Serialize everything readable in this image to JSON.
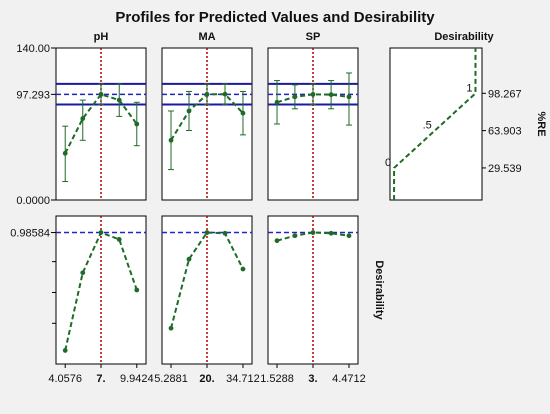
{
  "chart_data": {
    "type": "line",
    "title": "Profiles for Predicted Values and Desirability",
    "factors": [
      {
        "name": "pH",
        "tick_labels": [
          "4.0576",
          "7.",
          "9.9424"
        ],
        "x": [
          4.0576,
          5.5,
          7.0,
          8.5,
          9.9424
        ],
        "selected": 7.0,
        "xlim": [
          3.3,
          10.7
        ],
        "re_mean": [
          43,
          75,
          97.293,
          92,
          70
        ],
        "re_ci_low": [
          17,
          55,
          88,
          77,
          50
        ],
        "re_ci_high": [
          68,
          92,
          107,
          107,
          90
        ],
        "desirability": [
          0.03,
          0.66,
          0.98584,
          0.93,
          0.52
        ]
      },
      {
        "name": "MA",
        "tick_labels": [
          "5.2881",
          "20.",
          "34.712"
        ],
        "x": [
          5.2881,
          12.64,
          20.0,
          27.36,
          34.712
        ],
        "selected": 20.0,
        "xlim": [
          1.6,
          38.4
        ],
        "re_mean": [
          55,
          82,
          97.293,
          97.5,
          80
        ],
        "re_ci_low": [
          28,
          64,
          88,
          88,
          60
        ],
        "re_ci_high": [
          82,
          100,
          107,
          107,
          100
        ],
        "desirability": [
          0.21,
          0.77,
          0.98584,
          0.98,
          0.69
        ]
      },
      {
        "name": "SP",
        "tick_labels": [
          "1.5288",
          "3.",
          "4.4712"
        ],
        "x": [
          1.5288,
          2.26,
          3.0,
          3.74,
          4.4712
        ],
        "selected": 3.0,
        "xlim": [
          1.16,
          4.84
        ],
        "re_mean": [
          90,
          95,
          97.293,
          97,
          95
        ],
        "re_ci_low": [
          70,
          84,
          88,
          84,
          69
        ],
        "re_ci_high": [
          110,
          106,
          107,
          110,
          117
        ],
        "desirability": [
          0.92,
          0.96,
          0.98584,
          0.98,
          0.96
        ]
      }
    ],
    "response": {
      "label": "%RE",
      "ylim": [
        0,
        140
      ],
      "y_tick_labels": [
        "140.00",
        "97.293",
        "0.0000"
      ],
      "current": 97.293,
      "ci_band": [
        88,
        107
      ]
    },
    "desirability_row": {
      "label": "Desirability",
      "current": 0.98584,
      "y_tick_label": "0.98584",
      "ylim": [
        -0.08,
        1.12
      ]
    },
    "desirability_function": {
      "header": "Desirability",
      "point_labels": [
        "0",
        ".5",
        "1"
      ],
      "re_breaks": [
        29.539,
        63.903,
        98.267
      ],
      "re_tick_labels": [
        "98.267",
        "63.903",
        "29.539"
      ],
      "xlim": [
        -0.05,
        1.08
      ]
    },
    "colors": {
      "profile_line": "#1f6b27",
      "current_value_line": "#2222c8",
      "selected_level_line": "#b20000",
      "ci_band": "#1a1aa0",
      "background": "#f1f1f1",
      "panel": "#ffffff"
    }
  }
}
